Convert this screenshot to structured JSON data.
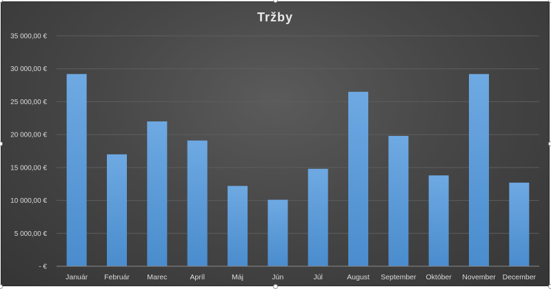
{
  "colors": {
    "bar": "#5b9bd5",
    "bar_light": "#6aa7e0",
    "grid": "#5e5e5e",
    "axis": "#8c8c8c",
    "background": "#404040"
  },
  "chart_data": {
    "type": "bar",
    "title": "Tržby",
    "xlabel": "",
    "ylabel": "",
    "categories": [
      "Január",
      "Február",
      "Marec",
      "Apríl",
      "Máj",
      "Jún",
      "Júl",
      "August",
      "September",
      "Október",
      "November",
      "December"
    ],
    "values": [
      29200,
      17000,
      22000,
      19100,
      12200,
      10100,
      14800,
      26500,
      19800,
      13800,
      29200,
      12700
    ],
    "ylim": [
      0,
      35000
    ],
    "yticks": [
      0,
      5000,
      10000,
      15000,
      20000,
      25000,
      30000,
      35000
    ],
    "ytick_labels": [
      "-  €",
      "5 000,00 €",
      "10 000,00 €",
      "15 000,00 €",
      "20 000,00 €",
      "25 000,00 €",
      "30 000,00 €",
      "35 000,00 €"
    ],
    "grid": true,
    "legend": "none"
  }
}
